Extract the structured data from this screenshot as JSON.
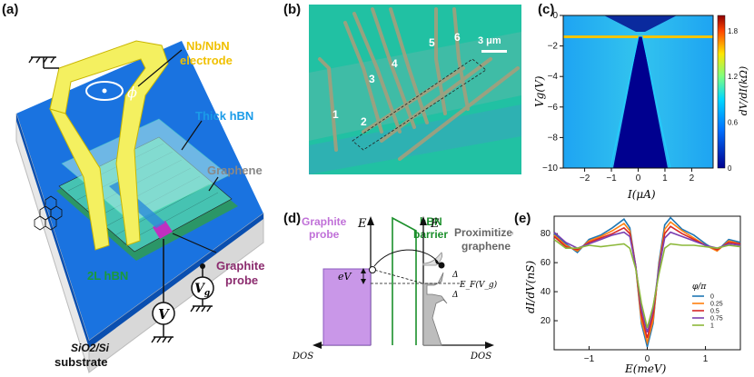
{
  "panels": {
    "a": "(a)",
    "b": "(b)",
    "c": "(c)",
    "d": "(d)",
    "e": "(e)"
  },
  "panel_a": {
    "electrode": [
      "Nb/NbN",
      "electrode"
    ],
    "phi": "ϕ",
    "thick_hbn": "Thick hBN",
    "graphene": "Graphene",
    "hbn2l": "2L hBN",
    "graphite_probe": [
      "Graphite",
      "probe"
    ],
    "v_meter": "V",
    "vg_meter": "V",
    "vg_sub": "g",
    "substrate": [
      "SiO2/Si",
      "substrate"
    ]
  },
  "panel_b": {
    "scalebar": "3 μm",
    "probe_numbers": [
      "1",
      "2",
      "3",
      "4",
      "5",
      "6"
    ]
  },
  "panel_c": {
    "xlabel": "I(μA)",
    "ylabel": "Vg(V)",
    "colorbar_label": "dV/dI(kΩ)",
    "xticks": [
      "−2",
      "−1",
      "0",
      "1",
      "2"
    ],
    "yticks": [
      "0",
      "−2",
      "−4",
      "−6",
      "−8",
      "−10"
    ],
    "cbar_ticks": [
      "1.8",
      "1.2",
      "0.6",
      "0"
    ],
    "colors": {
      "low": "#00008f",
      "mid": "#00b3ff",
      "high": "#ff2b00"
    }
  },
  "panel_d": {
    "graphite_probe": [
      "Graphite",
      "probe"
    ],
    "hbn_barrier": [
      "hBN",
      "barrier"
    ],
    "proximitized": [
      "Proximitized",
      "graphene"
    ],
    "E_left": "E",
    "E_right": "E",
    "eV": "eV",
    "delta_top": "Δ",
    "delta_bottom": "Δ",
    "fermi": "E_F(V_g)",
    "dos_left": "DOS",
    "dos_right": "DOS",
    "colors": {
      "probe": "#c997e8",
      "barrier": "#1b8f2b",
      "dos": "#bdbdbd"
    }
  },
  "chart_data": {
    "type": "line",
    "title": "",
    "xlabel": "E(meV)",
    "ylabel": "dI/dV(nS)",
    "xlim": [
      -1.6,
      1.6
    ],
    "ylim": [
      0,
      92
    ],
    "xticks": [
      "−1",
      "0",
      "1"
    ],
    "yticks": [
      "20",
      "40",
      "60",
      "80"
    ],
    "legend_title": "φ/π",
    "legend_position": "right",
    "x": [
      -1.6,
      -1.4,
      -1.2,
      -1.0,
      -0.8,
      -0.6,
      -0.4,
      -0.3,
      -0.2,
      -0.1,
      0.0,
      0.1,
      0.2,
      0.3,
      0.4,
      0.6,
      0.8,
      1.0,
      1.2,
      1.4,
      1.6
    ],
    "series": [
      {
        "name": "0",
        "color": "#1f77b4",
        "values": [
          80,
          73,
          67,
          76,
          79,
          84,
          90,
          84,
          58,
          18,
          2,
          18,
          60,
          86,
          91,
          83,
          79,
          73,
          68,
          76,
          74
        ]
      },
      {
        "name": "0.25",
        "color": "#ff7f0e",
        "values": [
          79,
          72,
          68,
          75,
          78,
          82,
          87,
          82,
          58,
          20,
          5,
          20,
          58,
          83,
          88,
          82,
          77,
          72,
          68,
          75,
          73
        ]
      },
      {
        "name": "0.5",
        "color": "#d62728",
        "values": [
          78,
          71,
          69,
          74,
          77,
          80,
          84,
          80,
          58,
          24,
          8,
          24,
          56,
          80,
          85,
          80,
          76,
          72,
          69,
          74,
          73
        ]
      },
      {
        "name": "0.75",
        "color": "#7b3fb0",
        "values": [
          81,
          74,
          70,
          73,
          76,
          79,
          81,
          78,
          58,
          28,
          12,
          28,
          56,
          77,
          81,
          78,
          75,
          72,
          70,
          73,
          72
        ]
      },
      {
        "name": "1",
        "color": "#8cb83a",
        "values": [
          76,
          70,
          70,
          72,
          71,
          72,
          73,
          70,
          56,
          32,
          15,
          30,
          52,
          70,
          73,
          72,
          72,
          71,
          70,
          72,
          71
        ]
      }
    ]
  }
}
